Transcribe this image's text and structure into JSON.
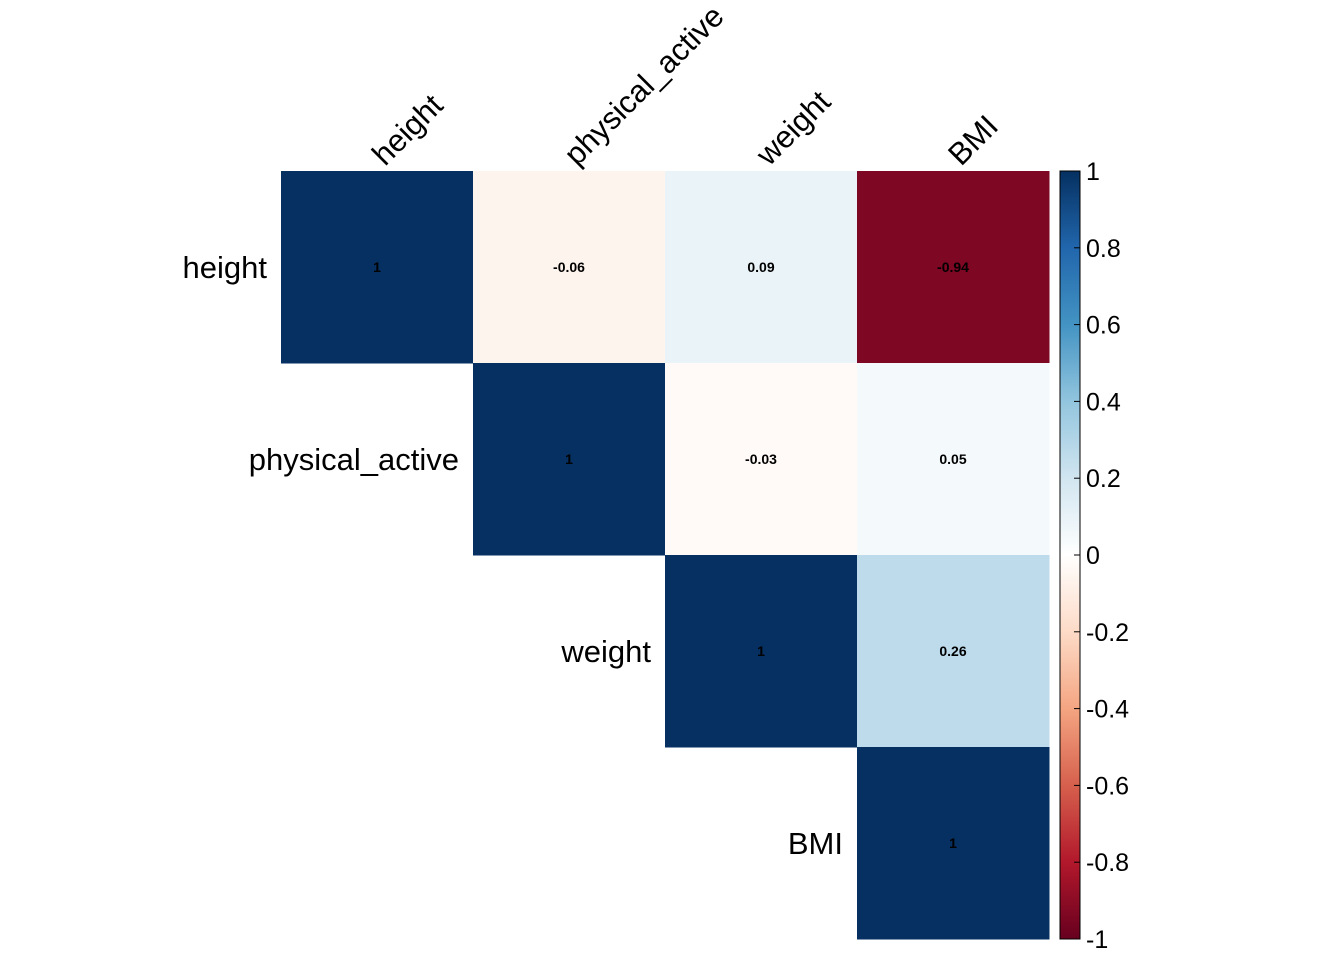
{
  "chart_data": {
    "type": "heatmap",
    "variables": [
      "height",
      "physical_active",
      "weight",
      "BMI"
    ],
    "matrix": [
      [
        1,
        -0.06,
        0.09,
        -0.94
      ],
      [
        null,
        1,
        -0.03,
        0.05
      ],
      [
        null,
        null,
        1,
        0.26
      ],
      [
        null,
        null,
        null,
        1
      ]
    ],
    "cell_labels": [
      [
        "1",
        "-0.06",
        "0.09",
        "-0.94"
      ],
      [
        null,
        "1",
        "-0.03",
        "0.05"
      ],
      [
        null,
        null,
        "1",
        "0.26"
      ],
      [
        null,
        null,
        null,
        "1"
      ]
    ],
    "triangle": "upper",
    "grid": false,
    "legend": {
      "placement": "right",
      "range": [
        -1,
        1
      ],
      "ticks": [
        1,
        0.8,
        0.6,
        0.4,
        0.2,
        0,
        -0.2,
        -0.4,
        -0.6,
        -0.8,
        -1
      ],
      "tick_labels": [
        "1",
        "0.8",
        "0.6",
        "0.4",
        "0.2",
        "0",
        "-0.2",
        "-0.4",
        "-0.6",
        "-0.8",
        "-1"
      ]
    },
    "colorscale": [
      "#67001f",
      "#b2182b",
      "#d6604d",
      "#f4a582",
      "#fddbc7",
      "#ffffff",
      "#d1e5f0",
      "#92c5de",
      "#4393c3",
      "#2166ac",
      "#053061"
    ]
  }
}
